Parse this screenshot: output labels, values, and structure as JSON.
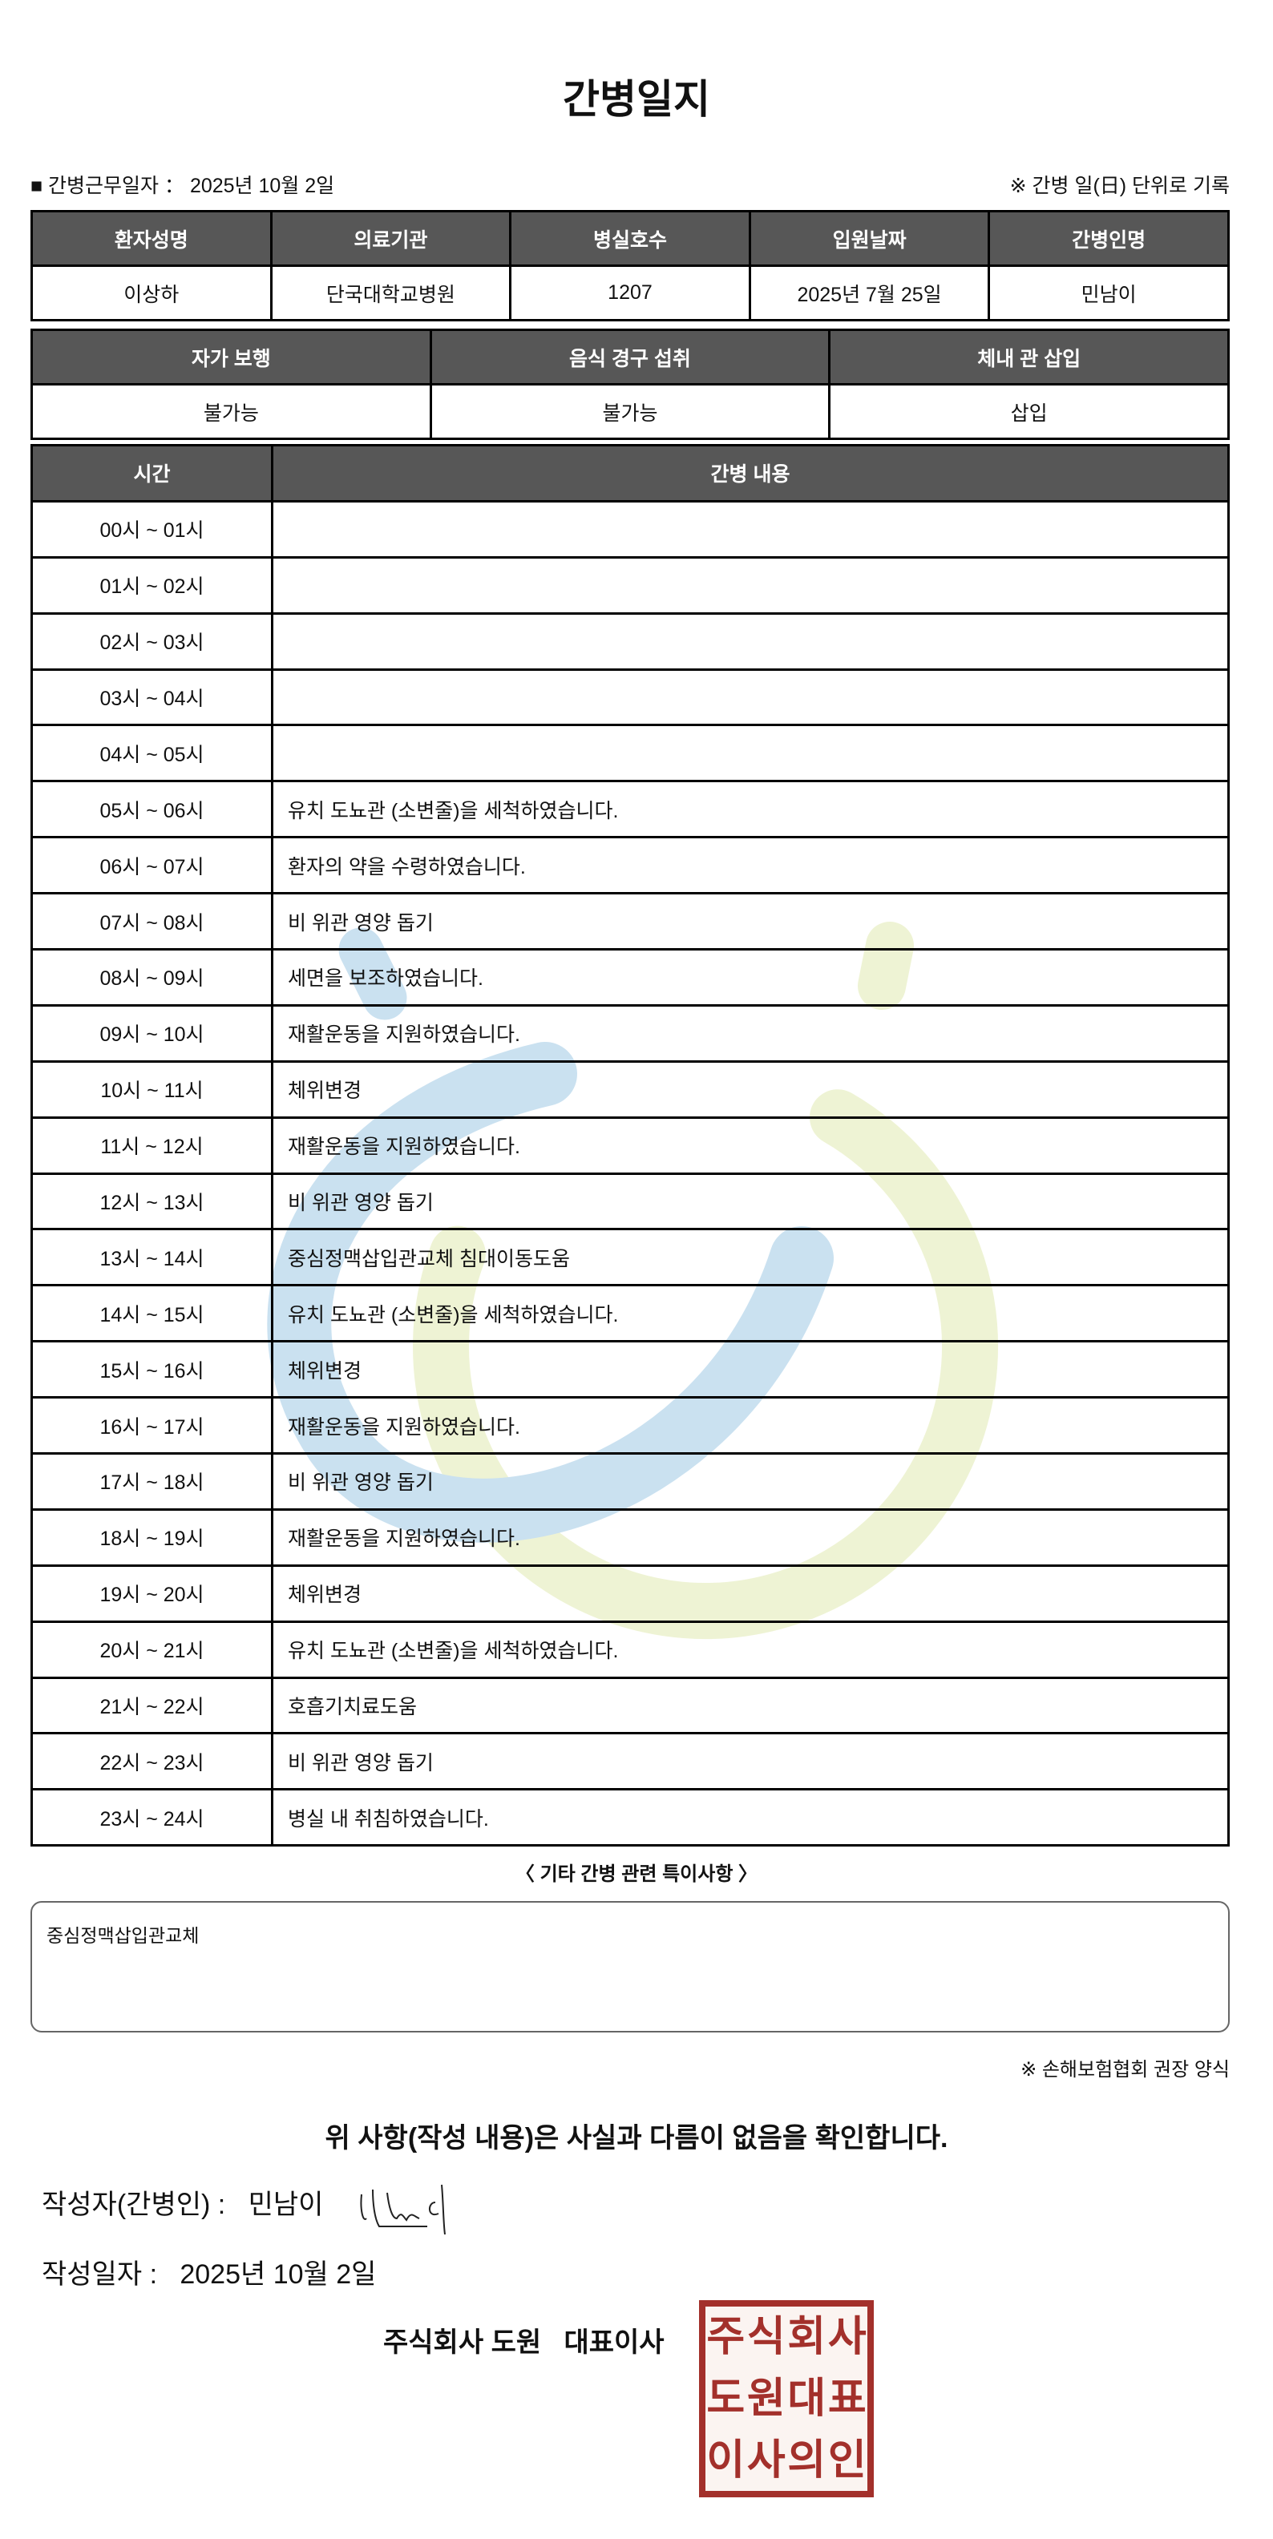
{
  "title": "간병일지",
  "work_date_label": "■ 간병근무일자 ： 2025년 10월 2일",
  "record_note": "※ 간병 일(日) 단위로 기록",
  "info_table": {
    "headers": [
      "환자성명",
      "의료기관",
      "병실호수",
      "입원날짜",
      "간병인명"
    ],
    "values": [
      "이상하",
      "단국대학교병원",
      "1207",
      "2025년 7월 25일",
      "민남이"
    ]
  },
  "status_table": {
    "headers": [
      "자가 보행",
      "음식 경구 섭취",
      "체내 관 삽입"
    ],
    "values": [
      "불가능",
      "불가능",
      "삽입"
    ]
  },
  "log_table": {
    "headers": [
      "시간",
      "간병 내용"
    ],
    "rows": [
      {
        "time": "00시 ~ 01시",
        "content": ""
      },
      {
        "time": "01시 ~ 02시",
        "content": ""
      },
      {
        "time": "02시 ~ 03시",
        "content": ""
      },
      {
        "time": "03시 ~ 04시",
        "content": ""
      },
      {
        "time": "04시 ~ 05시",
        "content": ""
      },
      {
        "time": "05시 ~ 06시",
        "content": "유치 도뇨관 (소변줄)을 세척하였습니다."
      },
      {
        "time": "06시 ~ 07시",
        "content": "환자의 약을 수령하였습니다."
      },
      {
        "time": "07시 ~ 08시",
        "content": "비 위관 영양 돕기"
      },
      {
        "time": "08시 ~ 09시",
        "content": "세면을 보조하였습니다."
      },
      {
        "time": "09시 ~ 10시",
        "content": "재활운동을 지원하였습니다."
      },
      {
        "time": "10시 ~ 11시",
        "content": "체위변경"
      },
      {
        "time": "11시 ~ 12시",
        "content": "재활운동을 지원하였습니다."
      },
      {
        "time": "12시 ~ 13시",
        "content": "비 위관 영양 돕기"
      },
      {
        "time": "13시 ~ 14시",
        "content": "중심정맥삽입관교체 침대이동도움"
      },
      {
        "time": "14시 ~ 15시",
        "content": "유치 도뇨관 (소변줄)을 세척하였습니다."
      },
      {
        "time": "15시 ~ 16시",
        "content": "체위변경"
      },
      {
        "time": "16시 ~ 17시",
        "content": "재활운동을 지원하였습니다."
      },
      {
        "time": "17시 ~ 18시",
        "content": "비 위관 영양 돕기"
      },
      {
        "time": "18시 ~ 19시",
        "content": "재활운동을 지원하였습니다."
      },
      {
        "time": "19시 ~ 20시",
        "content": "체위변경"
      },
      {
        "time": "20시 ~ 21시",
        "content": "유치 도뇨관 (소변줄)을 세척하였습니다."
      },
      {
        "time": "21시 ~ 22시",
        "content": "호흡기치료도움"
      },
      {
        "time": "22시 ~ 23시",
        "content": "비 위관 영양 돕기"
      },
      {
        "time": "23시 ~ 24시",
        "content": "병실 내 취침하였습니다."
      }
    ]
  },
  "notes": {
    "title": "〈 기타 간병 관련 특이사항 〉",
    "text": "중심정맥삽입관교체"
  },
  "form_note": "※ 손해보험협회 권장 양식",
  "confirmation": "위 사항(작성 내용)은 사실과 다름이 없음을 확인합니다.",
  "writer": {
    "label": "작성자(간병인) :",
    "name": "민남이",
    "signature": "민남이"
  },
  "written_date": {
    "label": "작성일자 :",
    "value": "2025년 10월 2일"
  },
  "company": "주식회사 도원   대표이사",
  "stamp": {
    "text": "주식회사도원대표이사의인",
    "color": "#a3302b"
  },
  "watermark_colors": {
    "blue": "#c8e0f0",
    "yellow": "#eef3d2"
  }
}
